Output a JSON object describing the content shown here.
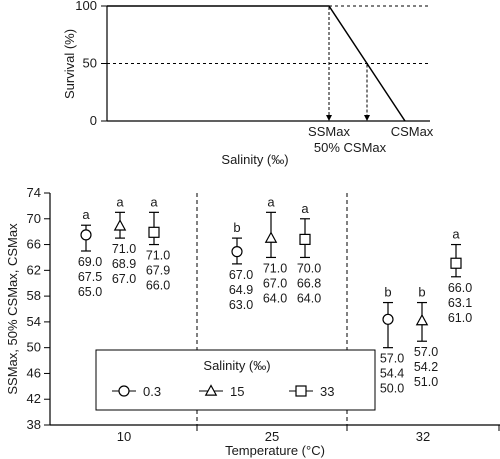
{
  "chart_data": [
    {
      "type": "line",
      "xlabel": "Salinity (‰)",
      "ylabel": "Survival (%)",
      "yticks": [
        0,
        50,
        100
      ],
      "ylim": [
        0,
        100
      ],
      "x_markers": [
        {
          "label": "SSMax",
          "survival": 100
        },
        {
          "label": "50% CSMax",
          "survival": 50
        },
        {
          "label": "CSMax",
          "survival": 0
        }
      ],
      "dashed_levels": [
        100,
        50
      ],
      "series": [
        {
          "x": [
            "start",
            "SSMax",
            "CSMax"
          ],
          "values": [
            100,
            100,
            0
          ]
        }
      ]
    },
    {
      "type": "scatter",
      "xlabel": "Temperature (°C)",
      "ylabel": "SSMax, 50% CSMax, CSMax",
      "categories": [
        "10",
        "25",
        "32"
      ],
      "ylim": [
        38,
        74
      ],
      "yticks": [
        38,
        42,
        46,
        50,
        54,
        58,
        62,
        66,
        70,
        74
      ],
      "legend": {
        "title": "Salinity (‰)",
        "placement": "bottom-left",
        "items": [
          {
            "label": "0.3",
            "marker": "circle"
          },
          {
            "label": "15",
            "marker": "triangle"
          },
          {
            "label": "33",
            "marker": "square"
          }
        ]
      },
      "series": [
        {
          "name": "0.3",
          "marker": "circle",
          "points": [
            {
              "x": "10",
              "ssmax": 69.0,
              "csmax50": 67.5,
              "csmax": 65.0,
              "letter": "a"
            },
            {
              "x": "25",
              "ssmax": 67.0,
              "csmax50": 64.9,
              "csmax": 63.0,
              "letter": "b"
            },
            {
              "x": "32",
              "ssmax": 57.0,
              "csmax50": 54.4,
              "csmax": 50.0,
              "letter": "b"
            }
          ]
        },
        {
          "name": "15",
          "marker": "triangle",
          "points": [
            {
              "x": "10",
              "ssmax": 71.0,
              "csmax50": 68.9,
              "csmax": 67.0,
              "letter": "a"
            },
            {
              "x": "25",
              "ssmax": 71.0,
              "csmax50": 67.0,
              "csmax": 64.0,
              "letter": "a"
            },
            {
              "x": "32",
              "ssmax": 57.0,
              "csmax50": 54.2,
              "csmax": 51.0,
              "letter": "b"
            }
          ]
        },
        {
          "name": "33",
          "marker": "square",
          "points": [
            {
              "x": "10",
              "ssmax": 71.0,
              "csmax50": 67.9,
              "csmax": 66.0,
              "letter": "a"
            },
            {
              "x": "25",
              "ssmax": 70.0,
              "csmax50": 66.8,
              "csmax": 64.0,
              "letter": "a"
            },
            {
              "x": "32",
              "ssmax": 66.0,
              "csmax50": 63.1,
              "csmax": 61.0,
              "letter": "a"
            }
          ]
        }
      ]
    }
  ]
}
